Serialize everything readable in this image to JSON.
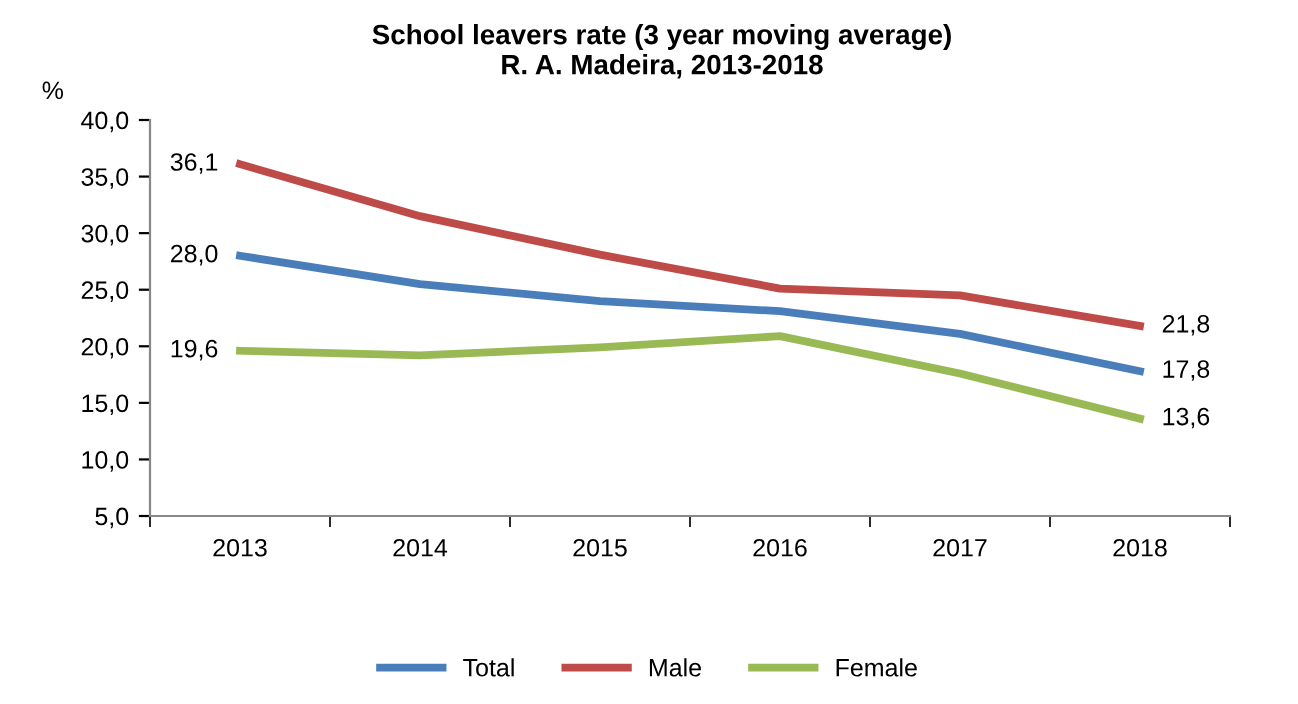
{
  "chart_data": {
    "type": "line",
    "title": "School leavers rate (3 year moving average)\nR. A. Madeira, 2013-2018",
    "ylabel": "%",
    "categories": [
      "2013",
      "2014",
      "2015",
      "2016",
      "2017",
      "2018"
    ],
    "series": [
      {
        "name": "Total",
        "color": "#4a7ebb",
        "values": [
          28.0,
          25.5,
          24.0,
          23.1,
          21.1,
          17.8
        ],
        "value_labels": [
          "28,0",
          null,
          null,
          null,
          null,
          "17,8"
        ]
      },
      {
        "name": "Male",
        "color": "#be4b48",
        "values": [
          36.1,
          31.5,
          28.1,
          25.1,
          24.5,
          21.8
        ],
        "value_labels": [
          "36,1",
          null,
          null,
          null,
          null,
          "21,8"
        ]
      },
      {
        "name": "Female",
        "color": "#98b954",
        "values": [
          19.6,
          19.2,
          19.9,
          20.9,
          17.6,
          13.6
        ],
        "value_labels": [
          "19,6",
          null,
          null,
          null,
          null,
          "13,6"
        ]
      }
    ],
    "ylim": [
      5,
      40
    ],
    "yticks": [
      {
        "value": 5,
        "label": "5,0"
      },
      {
        "value": 10,
        "label": "10,0"
      },
      {
        "value": 15,
        "label": "15,0"
      },
      {
        "value": 20,
        "label": "20,0"
      },
      {
        "value": 25,
        "label": "25,0"
      },
      {
        "value": 30,
        "label": "30,0"
      },
      {
        "value": 35,
        "label": "35,0"
      },
      {
        "value": 40,
        "label": "40,0"
      }
    ],
    "grid": false,
    "legend": "bottom",
    "marker": "none",
    "line_style": "solid"
  }
}
